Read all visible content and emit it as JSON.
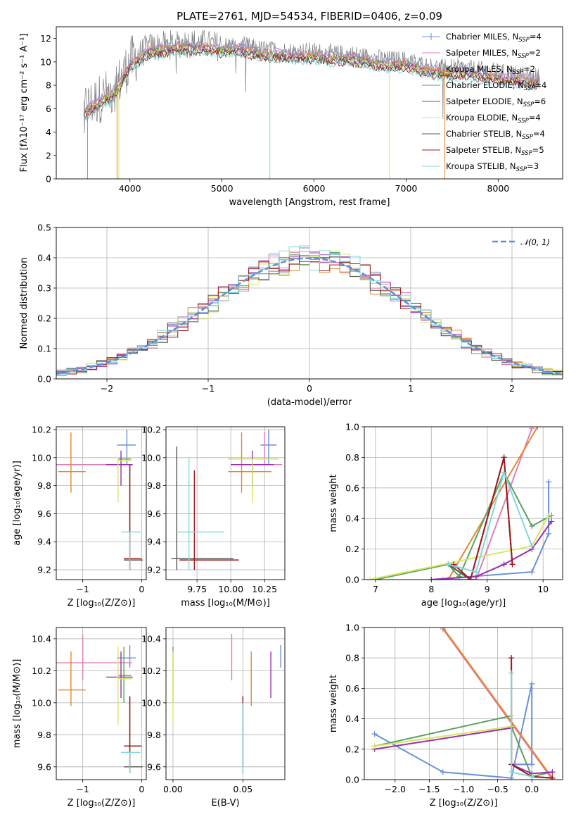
{
  "figure": {
    "title": "PLATE=2761, MJD=54534, FIBERID=0406, z=0.09",
    "series": [
      {
        "name": "Chabrier MILES, N",
        "sub": "SSP",
        "tail": "=4",
        "color": "#6a8fd8"
      },
      {
        "name": "Salpeter MILES, N",
        "sub": "SSP",
        "tail": "=2",
        "color": "#e07fb5"
      },
      {
        "name": "Kroupa MILES, N",
        "sub": "SSP",
        "tail": "=2",
        "color": "#e08a2e"
      },
      {
        "name": "Chabrier ELODIE, N",
        "sub": "SSP",
        "tail": "=4",
        "color": "#5f9e63"
      },
      {
        "name": "Salpeter ELODIE, N",
        "sub": "SSP",
        "tail": "=6",
        "color": "#9a2db0"
      },
      {
        "name": "Kroupa ELODIE, N",
        "sub": "SSP",
        "tail": "=4",
        "color": "#d4e860"
      },
      {
        "name": "Chabrier STELIB, N",
        "sub": "SSP",
        "tail": "=4",
        "color": "#555555"
      },
      {
        "name": "Salpeter STELIB, N",
        "sub": "SSP",
        "tail": "=5",
        "color": "#a01a1a"
      },
      {
        "name": "Kroupa STELIB, N",
        "sub": "SSP",
        "tail": "=3",
        "color": "#7fd8dc"
      }
    ]
  },
  "chart_data": [
    {
      "id": "spectrum",
      "type": "line",
      "xlabel": "wavelength [Angstrom, rest frame]",
      "ylabel": "Flux [fλ10⁻¹⁷ erg cm⁻² s⁻¹ A⁻¹]",
      "xlim": [
        3200,
        8700
      ],
      "ylim": [
        0,
        13
      ],
      "xticks": [
        4000,
        5000,
        6000,
        7000,
        8000
      ],
      "yticks": [
        0,
        2,
        4,
        6,
        8,
        10,
        12
      ],
      "grid": false,
      "legend": "right",
      "data_color": "#808080",
      "continuum": {
        "x": [
          3500,
          3600,
          3700,
          3800,
          3900,
          4000,
          4200,
          4400,
          4600,
          4800,
          5000,
          5200,
          5400,
          5600,
          5800,
          6000,
          6200,
          6400,
          6600,
          6800,
          7000,
          7200,
          7400,
          7600,
          7800,
          8000,
          8200,
          8400
        ],
        "y": [
          6.0,
          6.5,
          7.0,
          7.5,
          8.5,
          10.0,
          11.2,
          11.4,
          11.6,
          11.5,
          11.3,
          11.4,
          11.0,
          10.9,
          10.8,
          10.8,
          10.6,
          10.6,
          10.3,
          10.1,
          10.1,
          9.6,
          9.4,
          9.4,
          9.2,
          9.0,
          8.8,
          8.6
        ]
      }
    },
    {
      "id": "residuals",
      "type": "line",
      "xlabel": "(data-model)/error",
      "ylabel": "Normed distribution",
      "xlim": [
        -2.5,
        2.5
      ],
      "ylim": [
        0,
        0.5
      ],
      "xticks": [
        -2,
        -1,
        0,
        1,
        2
      ],
      "yticks": [
        0.0,
        0.1,
        0.2,
        0.3,
        0.4,
        0.5
      ],
      "grid": true,
      "reference": {
        "label": "𝒩(0, 1)",
        "mean": 0,
        "sigma": 1,
        "color": "#5b8ede"
      },
      "legend": "top-right"
    },
    {
      "id": "age_vs_Z",
      "type": "scatter",
      "xlabel": "Z [log₁₀(Z/Z⊙)]",
      "ylabel": "age  [log₁₀(age/yr)]",
      "xlim": [
        -1.45,
        0.08
      ],
      "ylim": [
        9.13,
        10.22
      ],
      "xticks": [
        -1,
        0
      ],
      "yticks": [
        9.2,
        9.4,
        9.6,
        9.8,
        10.0,
        10.2
      ],
      "grid": true,
      "points": [
        {
          "s": 0,
          "x": -0.25,
          "y": 10.09,
          "ex": [
            -0.42,
            -0.1
          ],
          "ey": [
            9.95,
            10.2
          ]
        },
        {
          "s": 1,
          "x": -1.0,
          "y": 9.95,
          "ex": [
            -1.45,
            -0.16
          ],
          "ey": [
            9.95,
            9.95
          ]
        },
        {
          "s": 2,
          "x": -1.2,
          "y": 9.9,
          "ex": [
            -1.42,
            -0.95
          ],
          "ey": [
            9.75,
            10.18
          ]
        },
        {
          "s": 3,
          "x": -0.3,
          "y": 9.99,
          "ex": [
            -0.4,
            -0.18
          ],
          "ey": [
            9.99,
            9.99
          ]
        },
        {
          "s": 4,
          "x": -0.35,
          "y": 9.95,
          "ex": [
            -0.6,
            -0.15
          ],
          "ey": [
            9.8,
            10.05
          ]
        },
        {
          "s": 5,
          "x": -0.4,
          "y": 9.98,
          "ex": [
            -0.4,
            -0.16
          ],
          "ey": [
            9.68,
            9.98
          ]
        },
        {
          "s": 6,
          "x": -0.2,
          "y": 9.27,
          "ex": [
            -0.3,
            0.02
          ],
          "ey": [
            9.2,
            9.95
          ]
        },
        {
          "s": 7,
          "x": -0.2,
          "y": 9.28,
          "ex": [
            -0.3,
            0.0
          ],
          "ey": [
            9.2,
            9.95
          ]
        },
        {
          "s": 8,
          "x": -0.2,
          "y": 9.47,
          "ex": [
            -0.35,
            -0.02
          ],
          "ey": [
            9.2,
            9.47
          ]
        }
      ]
    },
    {
      "id": "age_vs_mass",
      "type": "scatter",
      "xlabel": "mass [log₁₀(M/M⊙)]",
      "ylabel": "",
      "xlim": [
        9.52,
        10.4
      ],
      "ylim": [
        9.13,
        10.22
      ],
      "xticks": [
        9.75,
        10.0,
        10.25
      ],
      "yticks": [
        9.2,
        9.4,
        9.6,
        9.8,
        10.0,
        10.2
      ],
      "grid": true,
      "points": [
        {
          "s": 0,
          "x": 10.28,
          "y": 10.09,
          "ex": [
            10.22,
            10.34
          ],
          "ey": [
            9.95,
            10.2
          ]
        },
        {
          "s": 1,
          "x": 10.25,
          "y": 9.95,
          "ex": [
            10.12,
            10.38
          ],
          "ey": [
            9.95,
            10.18
          ]
        },
        {
          "s": 2,
          "x": 10.08,
          "y": 9.9,
          "ex": [
            9.98,
            10.3
          ],
          "ey": [
            9.75,
            10.18
          ]
        },
        {
          "s": 3,
          "x": 10.17,
          "y": 9.99,
          "ex": [
            9.98,
            10.35
          ],
          "ey": [
            9.99,
            9.99
          ]
        },
        {
          "s": 4,
          "x": 10.16,
          "y": 9.95,
          "ex": [
            10.0,
            10.32
          ],
          "ey": [
            9.8,
            10.05
          ]
        },
        {
          "s": 5,
          "x": 10.16,
          "y": 9.99,
          "ex": [
            9.98,
            10.35
          ],
          "ey": [
            9.68,
            9.99
          ]
        },
        {
          "s": 6,
          "x": 9.6,
          "y": 9.28,
          "ex": [
            9.56,
            10.02
          ],
          "ey": [
            9.2,
            10.08
          ]
        },
        {
          "s": 7,
          "x": 9.73,
          "y": 9.27,
          "ex": [
            9.62,
            10.06
          ],
          "ey": [
            9.2,
            9.91
          ]
        },
        {
          "s": 8,
          "x": 9.69,
          "y": 9.47,
          "ex": [
            9.6,
            9.95
          ],
          "ey": [
            9.2,
            10.0
          ]
        }
      ]
    },
    {
      "id": "weight_vs_age",
      "type": "line",
      "xlabel": "age  [log₁₀(age/yr)]",
      "ylabel": "mass weight",
      "xlim": [
        6.8,
        10.35
      ],
      "ylim": [
        0,
        1.0
      ],
      "xticks": [
        7,
        8,
        9,
        10
      ],
      "yticks": [
        0.0,
        0.2,
        0.4,
        0.6,
        0.8,
        1.0
      ],
      "grid": true,
      "lines": [
        {
          "s": 0,
          "x": [
            8.0,
            9.8,
            10.1,
            10.1
          ],
          "y": [
            0.0,
            0.05,
            0.3,
            0.64
          ]
        },
        {
          "s": 1,
          "x": [
            8.2,
            8.8,
            9.8
          ],
          "y": [
            0.0,
            0.0,
            0.99
          ]
        },
        {
          "s": 2,
          "x": [
            8.3,
            9.9
          ],
          "y": [
            0.0,
            1.0
          ]
        },
        {
          "s": 3,
          "x": [
            7.0,
            8.3,
            8.5,
            9.3,
            9.8,
            10.15
          ],
          "y": [
            0.0,
            0.1,
            0.02,
            0.7,
            0.35,
            0.42
          ]
        },
        {
          "s": 4,
          "x": [
            8.0,
            8.8,
            9.3,
            9.8,
            10.15
          ],
          "y": [
            0.0,
            0.02,
            0.1,
            0.2,
            0.38
          ]
        },
        {
          "s": 5,
          "x": [
            6.9,
            9.8,
            10.1
          ],
          "y": [
            0.0,
            0.22,
            0.42
          ]
        },
        {
          "s": 6,
          "x": [
            8.3,
            8.7,
            9.3,
            9.45
          ],
          "y": [
            0.1,
            0.0,
            0.8,
            0.1
          ]
        },
        {
          "s": 7,
          "x": [
            8.4,
            8.7,
            9.3,
            9.45
          ],
          "y": [
            0.1,
            0.0,
            0.8,
            0.1
          ]
        },
        {
          "s": 8,
          "x": [
            8.3,
            8.8,
            9.3,
            9.8
          ],
          "y": [
            0.1,
            0.05,
            0.7,
            0.22
          ]
        }
      ]
    },
    {
      "id": "mass_vs_Z",
      "type": "scatter",
      "xlabel": "Z [log₁₀(Z/Z⊙)]",
      "ylabel": "mass [log₁₀(M/M⊙)]",
      "xlim": [
        -1.45,
        0.08
      ],
      "ylim": [
        9.52,
        10.47
      ],
      "xticks": [
        -1,
        0
      ],
      "yticks": [
        9.6,
        9.8,
        10.0,
        10.2,
        10.4
      ],
      "grid": true,
      "points": [
        {
          "s": 0,
          "x": -0.2,
          "y": 10.28,
          "ex": [
            -0.42,
            -0.1
          ],
          "ey": [
            10.22,
            10.36
          ]
        },
        {
          "s": 1,
          "x": -1.0,
          "y": 10.25,
          "ex": [
            -1.45,
            -0.16
          ],
          "ey": [
            10.14,
            10.43
          ]
        },
        {
          "s": 2,
          "x": -1.2,
          "y": 10.08,
          "ex": [
            -1.42,
            -0.95
          ],
          "ey": [
            9.98,
            10.32
          ]
        },
        {
          "s": 3,
          "x": -0.3,
          "y": 10.17,
          "ex": [
            -0.4,
            -0.18
          ],
          "ey": [
            10.0,
            10.35
          ]
        },
        {
          "s": 4,
          "x": -0.35,
          "y": 10.16,
          "ex": [
            -0.6,
            -0.15
          ],
          "ey": [
            10.03,
            10.32
          ]
        },
        {
          "s": 5,
          "x": -0.4,
          "y": 10.15,
          "ex": [
            -0.4,
            -0.16
          ],
          "ey": [
            9.86,
            10.35
          ]
        },
        {
          "s": 6,
          "x": -0.2,
          "y": 9.6,
          "ex": [
            -0.3,
            0.02
          ],
          "ey": [
            9.56,
            10.04
          ]
        },
        {
          "s": 7,
          "x": -0.2,
          "y": 9.73,
          "ex": [
            -0.3,
            0.0
          ],
          "ey": [
            9.6,
            10.04
          ]
        },
        {
          "s": 8,
          "x": -0.2,
          "y": 9.69,
          "ex": [
            -0.35,
            -0.02
          ],
          "ey": [
            9.56,
            9.69
          ]
        }
      ]
    },
    {
      "id": "mass_vs_ebv",
      "type": "scatter",
      "xlabel": "E(B-V)",
      "ylabel": "",
      "xlim": [
        -0.005,
        0.08
      ],
      "ylim": [
        9.52,
        10.47
      ],
      "xticks": [
        0.0,
        0.05
      ],
      "yticks": [
        9.6,
        9.8,
        10.0,
        10.2,
        10.4
      ],
      "grid": true,
      "points": [
        {
          "s": 0,
          "x": 0.077,
          "y": 10.28,
          "ex": [
            0.077,
            0.077
          ],
          "ey": [
            10.22,
            10.36
          ]
        },
        {
          "s": 1,
          "x": 0.042,
          "y": 10.25,
          "ex": [
            0.042,
            0.042
          ],
          "ey": [
            10.14,
            10.43
          ]
        },
        {
          "s": 2,
          "x": 0.056,
          "y": 10.08,
          "ex": [
            0.056,
            0.056
          ],
          "ey": [
            9.98,
            10.32
          ]
        },
        {
          "s": 3,
          "x": 0.0,
          "y": 10.17,
          "ex": [
            0.0,
            0.0
          ],
          "ey": [
            10.0,
            10.35
          ]
        },
        {
          "s": 4,
          "x": 0.07,
          "y": 10.16,
          "ex": [
            0.07,
            0.07
          ],
          "ey": [
            10.03,
            10.32
          ]
        },
        {
          "s": 5,
          "x": 0.0,
          "y": 10.15,
          "ex": [
            0.0,
            0.0
          ],
          "ey": [
            9.86,
            10.32
          ]
        },
        {
          "s": 6,
          "x": 0.05,
          "y": 9.6,
          "ex": [
            0.05,
            0.05
          ],
          "ey": [
            9.56,
            10.04
          ]
        },
        {
          "s": 7,
          "x": 0.05,
          "y": 9.73,
          "ex": [
            0.05,
            0.05
          ],
          "ey": [
            9.6,
            10.04
          ]
        },
        {
          "s": 8,
          "x": 0.05,
          "y": 9.69,
          "ex": [
            0.05,
            0.05
          ],
          "ey": [
            9.56,
            10.0
          ]
        }
      ]
    },
    {
      "id": "weight_vs_Z",
      "type": "line",
      "xlabel": "Z [log₁₀(Z/Z⊙)]",
      "ylabel": "mass weight",
      "xlim": [
        -2.45,
        0.45
      ],
      "ylim": [
        0,
        1.0
      ],
      "xticks": [
        -2.0,
        -1.5,
        -1.0,
        -0.5,
        0.0
      ],
      "yticks": [
        0.0,
        0.2,
        0.4,
        0.6,
        0.8,
        1.0
      ],
      "grid": true,
      "lines": [
        {
          "s": 0,
          "x": [
            -2.3,
            -1.3,
            -0.3,
            0.0,
            0.0,
            -0.3
          ],
          "y": [
            0.3,
            0.05,
            0.01,
            0.63,
            0.1,
            0.1
          ]
        },
        {
          "s": 1,
          "x": [
            -1.3,
            0.3
          ],
          "y": [
            0.99,
            0.0
          ]
        },
        {
          "s": 2,
          "x": [
            -1.3,
            0.3
          ],
          "y": [
            1.0,
            0.01
          ]
        },
        {
          "s": 3,
          "x": [
            -2.3,
            -0.3,
            -0.3,
            0.0,
            0.3
          ],
          "y": [
            0.22,
            0.42,
            0.35,
            0.02,
            0.05
          ]
        },
        {
          "s": 4,
          "x": [
            -2.3,
            -0.3,
            -0.3,
            0.0,
            0.3
          ],
          "y": [
            0.2,
            0.34,
            0.1,
            0.04,
            0.05
          ]
        },
        {
          "s": 5,
          "x": [
            -2.3,
            -0.3,
            -0.3
          ],
          "y": [
            0.22,
            0.35,
            0.42
          ]
        },
        {
          "s": 6,
          "x": [
            -0.3,
            -0.3,
            0.0,
            0.3
          ],
          "y": [
            0.8,
            0.1,
            0.02,
            0.01
          ]
        },
        {
          "s": 7,
          "x": [
            -0.3,
            -0.3,
            0.0,
            0.3
          ],
          "y": [
            0.8,
            0.1,
            0.02,
            0.01
          ]
        },
        {
          "s": 8,
          "x": [
            -0.3,
            -0.3,
            0.0
          ],
          "y": [
            0.7,
            0.05,
            0.02
          ]
        }
      ]
    }
  ]
}
